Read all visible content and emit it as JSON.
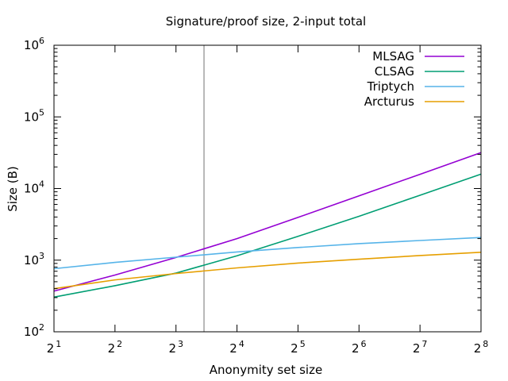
{
  "chart_data": {
    "type": "line",
    "title": "Signature/proof size, 2-input total",
    "xlabel": "Anonymity set size",
    "ylabel": "Size (B)",
    "x_scale": "log2",
    "y_scale": "log10",
    "xlim": [
      2,
      256
    ],
    "ylim": [
      100,
      1000000
    ],
    "x_ticks": [
      {
        "base": "2",
        "exp": "1",
        "value": 2
      },
      {
        "base": "2",
        "exp": "2",
        "value": 4
      },
      {
        "base": "2",
        "exp": "3",
        "value": 8
      },
      {
        "base": "2",
        "exp": "4",
        "value": 16
      },
      {
        "base": "2",
        "exp": "5",
        "value": 32
      },
      {
        "base": "2",
        "exp": "6",
        "value": 64
      },
      {
        "base": "2",
        "exp": "7",
        "value": 128
      },
      {
        "base": "2",
        "exp": "8",
        "value": 256
      }
    ],
    "y_ticks": [
      {
        "base": "10",
        "exp": "2",
        "value": 100
      },
      {
        "base": "10",
        "exp": "3",
        "value": 1000
      },
      {
        "base": "10",
        "exp": "4",
        "value": 10000
      },
      {
        "base": "10",
        "exp": "5",
        "value": 100000
      },
      {
        "base": "10",
        "exp": "6",
        "value": 1000000
      }
    ],
    "reference_line_x": 11,
    "legend_position": "top-right",
    "grid": false,
    "x": [
      2,
      4,
      8,
      16,
      32,
      64,
      128,
      256
    ],
    "series": [
      {
        "name": "MLSAG",
        "color": "#9400d3",
        "values": [
          370,
          620,
          1090,
          2000,
          3950,
          7900,
          15800,
          31700
        ]
      },
      {
        "name": "CLSAG",
        "color": "#009e73",
        "values": [
          305,
          440,
          660,
          1150,
          2150,
          4100,
          8050,
          15900
        ]
      },
      {
        "name": "Triptych",
        "color": "#56b4e9",
        "values": [
          760,
          930,
          1100,
          1300,
          1500,
          1700,
          1880,
          2070
        ]
      },
      {
        "name": "Arcturus",
        "color": "#e69f00",
        "values": [
          400,
          530,
          650,
          780,
          910,
          1030,
          1160,
          1290
        ]
      }
    ]
  }
}
